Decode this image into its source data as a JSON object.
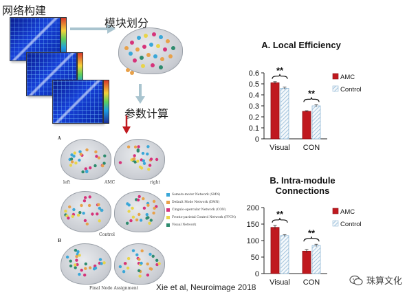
{
  "labels": {
    "network_construction": "网络构建",
    "module_division": "模块划分",
    "parameter_calc": "参数计算"
  },
  "brain_figure": {
    "panel_a": "A",
    "panel_b": "B",
    "left": "left",
    "right": "right",
    "amc": "AMC",
    "control": "Control",
    "final": "Final Node Assignment",
    "legend": [
      {
        "label": "Somato-motor Network (SMN)",
        "color": "#3aa7d8"
      },
      {
        "label": "Default Mode Network (DMN)",
        "color": "#e8a14a"
      },
      {
        "label": "Cingulo-opercular Network (CON)",
        "color": "#d6337a"
      },
      {
        "label": "Fronto-parietal Control Network (FPCN)",
        "color": "#e8d44a"
      },
      {
        "label": "Visual Network",
        "color": "#2e8b6e"
      }
    ]
  },
  "colors": {
    "amc": "#c0191f",
    "control_stroke": "#8fb7d6",
    "arrow_gray": "#a9c4cf",
    "arrow_red": "#c0191f"
  },
  "chart_data": [
    {
      "type": "bar",
      "title": "A. Local Efficiency",
      "categories": [
        "Visual",
        "CON"
      ],
      "series": [
        {
          "name": "AMC",
          "values": [
            0.51,
            0.25
          ],
          "errors": [
            0.01,
            0.006
          ]
        },
        {
          "name": "Control",
          "values": [
            0.46,
            0.3
          ],
          "errors": [
            0.01,
            0.01
          ]
        }
      ],
      "ylim": [
        0,
        0.6
      ],
      "yticks": [
        "0",
        "0.1",
        "0.2",
        "0.3",
        "0.4",
        "0.5",
        "0.6"
      ],
      "significance": [
        "**",
        "**"
      ],
      "legend_position": "right"
    },
    {
      "type": "bar",
      "title": "B. Intra-module Connections",
      "categories": [
        "Visual",
        "CON"
      ],
      "series": [
        {
          "name": "AMC",
          "values": [
            140,
            68
          ],
          "errors": [
            6,
            5
          ]
        },
        {
          "name": "Control",
          "values": [
            115,
            85
          ],
          "errors": [
            3,
            4
          ]
        }
      ],
      "ylim": [
        0,
        200
      ],
      "yticks": [
        "0",
        "50",
        "100",
        "150",
        "200"
      ],
      "significance": [
        "**",
        "**"
      ],
      "legend_position": "right"
    }
  ],
  "citation": "Xie et al, Neuroimage 2018",
  "watermark": {
    "icon": "wechat-icon",
    "text": "珠算文化"
  }
}
